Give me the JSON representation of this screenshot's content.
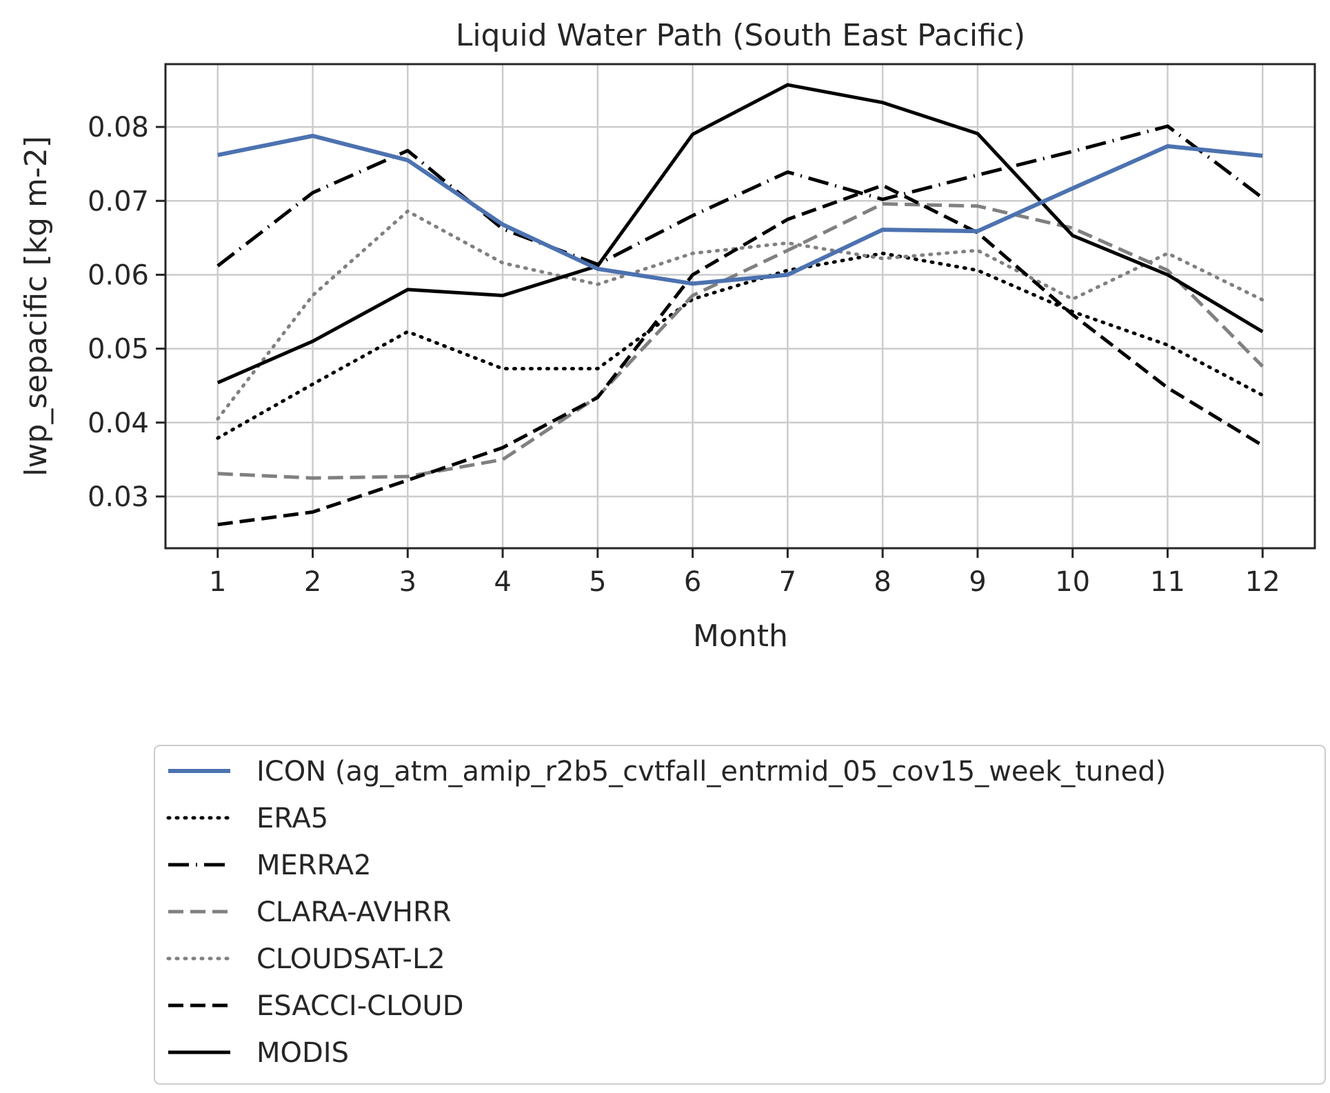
{
  "chart_data": {
    "type": "line",
    "title": "Liquid Water Path (South East Pacific)",
    "xlabel": "Month",
    "ylabel": "lwp_sepacific [kg m-2]",
    "x": [
      1,
      2,
      3,
      4,
      5,
      6,
      7,
      8,
      9,
      10,
      11,
      12
    ],
    "x_ticks": [
      "1",
      "2",
      "3",
      "4",
      "5",
      "6",
      "7",
      "8",
      "9",
      "10",
      "11",
      "12"
    ],
    "xlim": [
      0.45,
      12.55
    ],
    "ylim": [
      0.023,
      0.0885
    ],
    "y_ticks": [
      "0.03",
      "0.04",
      "0.05",
      "0.06",
      "0.07",
      "0.08"
    ],
    "y_tick_values": [
      0.03,
      0.04,
      0.05,
      0.06,
      0.07,
      0.08
    ],
    "grid": true,
    "legend_position": "below plot, left",
    "series": [
      {
        "name": "ICON (ag_atm_amip_r2b5_cvtfall_entrmid_05_cov15_week_tuned)",
        "color": "#4c72b0",
        "style": "solid",
        "width": 6,
        "values": [
          0.0762,
          0.0788,
          0.0755,
          0.0668,
          0.0608,
          0.0588,
          0.06,
          0.0661,
          0.0659,
          0.0717,
          0.0774,
          0.0761
        ]
      },
      {
        "name": "ERA5",
        "color": "#000000",
        "style": "dotted",
        "width": 5,
        "values": [
          0.0379,
          0.0452,
          0.0523,
          0.0473,
          0.0473,
          0.0567,
          0.0606,
          0.0629,
          0.0606,
          0.055,
          0.0505,
          0.0437
        ]
      },
      {
        "name": "MERRA2",
        "color": "#000000",
        "style": "dashdot",
        "width": 5,
        "values": [
          0.0612,
          0.0711,
          0.0768,
          0.0662,
          0.0614,
          0.068,
          0.0739,
          0.0702,
          0.0735,
          0.0767,
          0.0801,
          0.0704
        ]
      },
      {
        "name": "CLARA-AVHRR",
        "color": "#808080",
        "style": "dashed",
        "width": 5,
        "values": [
          0.0331,
          0.0325,
          0.0327,
          0.035,
          0.0435,
          0.0572,
          0.0633,
          0.0696,
          0.0693,
          0.0663,
          0.0606,
          0.0476
        ]
      },
      {
        "name": "CLOUDSAT-L2",
        "color": "#808080",
        "style": "dotted",
        "width": 5,
        "values": [
          0.0405,
          0.0572,
          0.0686,
          0.0616,
          0.0587,
          0.0629,
          0.0643,
          0.0622,
          0.0633,
          0.0567,
          0.0629,
          0.0566
        ]
      },
      {
        "name": "ESACCI-CLOUD",
        "color": "#000000",
        "style": "dashed",
        "width": 5,
        "values": [
          0.0262,
          0.0279,
          0.0322,
          0.0366,
          0.0434,
          0.06,
          0.0675,
          0.0721,
          0.0657,
          0.0546,
          0.0447,
          0.0369
        ]
      },
      {
        "name": "MODIS",
        "color": "#000000",
        "style": "solid",
        "width": 5,
        "values": [
          0.0454,
          0.051,
          0.058,
          0.0572,
          0.0612,
          0.079,
          0.0857,
          0.0833,
          0.0791,
          0.0653,
          0.06,
          0.0523
        ]
      }
    ]
  }
}
